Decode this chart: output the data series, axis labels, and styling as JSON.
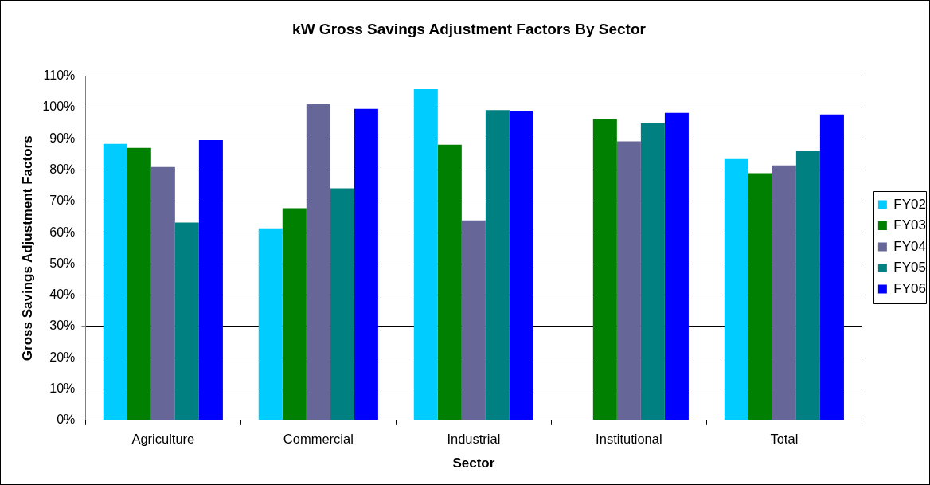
{
  "chart_data": {
    "type": "bar",
    "title": "kW Gross Savings Adjustment Factors By Sector",
    "xlabel": "Sector",
    "ylabel": "Gross Savings Adjustment Factors",
    "categories": [
      "Agriculture",
      "Commercial",
      "Industrial",
      "Institutional",
      "Total"
    ],
    "series": [
      {
        "name": "FY02",
        "color": "#00ccff",
        "values": [
          88.4,
          61.4,
          105.9,
          null,
          83.5
        ]
      },
      {
        "name": "FY03",
        "color": "#008000",
        "values": [
          87.1,
          67.8,
          88.1,
          96.3,
          79.0
        ]
      },
      {
        "name": "FY04",
        "color": "#666699",
        "values": [
          81.0,
          101.3,
          63.9,
          89.2,
          81.5
        ]
      },
      {
        "name": "FY05",
        "color": "#008080",
        "values": [
          63.2,
          74.2,
          99.2,
          95.0,
          86.3
        ]
      },
      {
        "name": "FY06",
        "color": "#0000ff",
        "values": [
          89.6,
          99.6,
          99.0,
          98.3,
          97.8
        ]
      }
    ],
    "ylim": [
      0,
      110
    ],
    "yticks": [
      {
        "value": 0,
        "label": "0%"
      },
      {
        "value": 10,
        "label": "10%"
      },
      {
        "value": 20,
        "label": "20%"
      },
      {
        "value": 30,
        "label": "30%"
      },
      {
        "value": 40,
        "label": "40%"
      },
      {
        "value": 50,
        "label": "50%"
      },
      {
        "value": 60,
        "label": "60%"
      },
      {
        "value": 70,
        "label": "70%"
      },
      {
        "value": 80,
        "label": "80%"
      },
      {
        "value": 90,
        "label": "90%"
      },
      {
        "value": 100,
        "label": "100%"
      },
      {
        "value": 110,
        "label": "110%"
      }
    ],
    "grid": "y",
    "legend": "right"
  }
}
